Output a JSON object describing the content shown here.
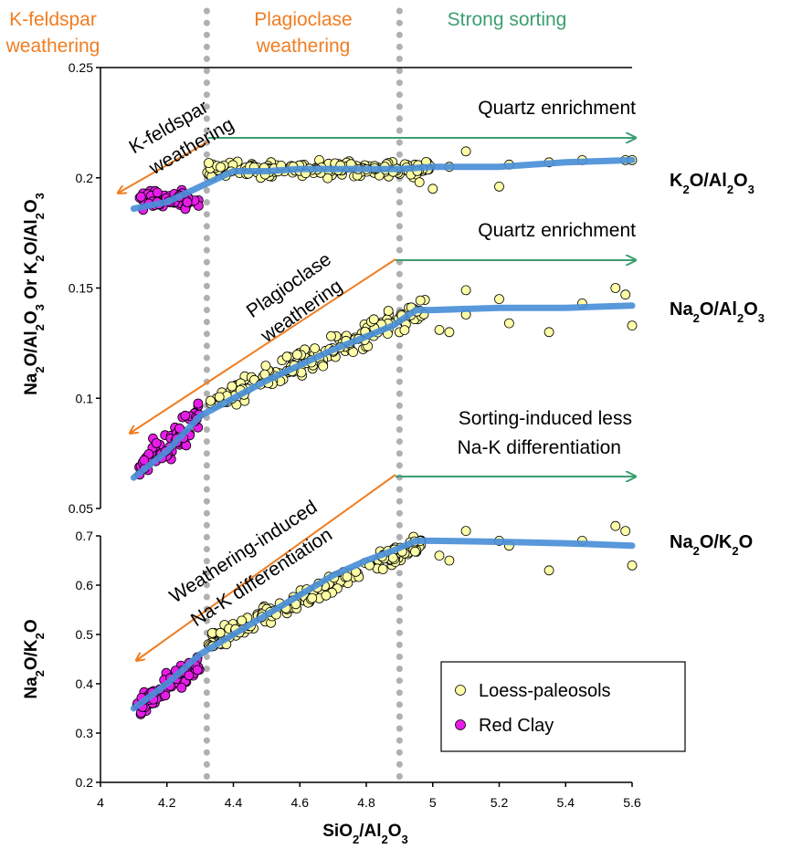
{
  "chart_data": {
    "type": "scatter",
    "x_axis": {
      "label_main": "SiO",
      "label_sub1": "2",
      "label_mid": "/Al",
      "label_sub2": "2",
      "label_end": "O",
      "label_sub3": "3",
      "range": [
        4,
        5.6
      ],
      "ticks": [
        "4",
        "4.2",
        "4.4",
        "4.6",
        "4.8",
        "5",
        "5.2",
        "5.4",
        "5.6"
      ]
    },
    "top_axis": {
      "label": "Na2O/Al2O3 Or K2O/Al2O3",
      "range": [
        0.05,
        0.25
      ],
      "ticks": [
        "0.05",
        "0.1",
        "0.15",
        "0.2",
        "0.25"
      ]
    },
    "bottom_axis": {
      "label": "Na2O/K2O",
      "range": [
        0.2,
        0.7
      ],
      "ticks": [
        "0.2",
        "0.3",
        "0.4",
        "0.5",
        "0.6",
        "0.7"
      ]
    },
    "phases": [
      {
        "label_line1": "K-feldspar",
        "label_line2": "weathering",
        "color": "#F07D21"
      },
      {
        "label_line1": "Plagioclase",
        "label_line2": "weathering",
        "color": "#F07D21"
      },
      {
        "label_line1": "Strong sorting",
        "label_line2": "",
        "color": "#3B9E70"
      }
    ],
    "phase_boundaries": [
      4.32,
      4.9
    ],
    "annotations": {
      "quartz1": "Quartz enrichment",
      "quartz2": "Quartz enrichment",
      "sorting_line1": "Sorting-induced less",
      "sorting_line2": "Na-K differentiation",
      "kfeld_line1": "K-feldspar",
      "kfeld_line2": "weathering",
      "plag_line1": "Plagioclase",
      "plag_line2": "weathering",
      "wind_line1": "Weathering-induced",
      "wind_line2": "Na-K differentiation"
    },
    "series_labels": {
      "k": {
        "a": "K",
        "b": "2",
        "c": "O/Al",
        "d": "2",
        "e": "O",
        "f": "3"
      },
      "na": {
        "a": "Na",
        "b": "2",
        "c": "O/Al",
        "d": "2",
        "e": "O",
        "f": "3"
      },
      "nak": {
        "a": "Na",
        "b": "2",
        "c": "O/K",
        "d": "2",
        "e": "O",
        "f": ""
      }
    },
    "legend": {
      "placement": "bottom-right",
      "items": [
        {
          "name": "Loess-paleosols",
          "color": "#FFFFA8"
        },
        {
          "name": "Red Clay",
          "color": "#E81CE8"
        }
      ]
    },
    "colors": {
      "trend": "#4A8FD8",
      "weathering_arrow": "#F07D21",
      "sorting_arrow": "#3B9E70",
      "boundary": "#B0B0B0"
    },
    "series": [
      {
        "name": "K2O/Al2O3",
        "trend": [
          [
            4.1,
            0.186
          ],
          [
            4.2,
            0.189
          ],
          [
            4.3,
            0.196
          ],
          [
            4.4,
            0.203
          ],
          [
            4.5,
            0.203
          ],
          [
            4.6,
            0.204
          ],
          [
            4.7,
            0.204
          ],
          [
            4.8,
            0.204
          ],
          [
            4.9,
            0.204
          ],
          [
            5.0,
            0.205
          ],
          [
            5.2,
            0.205
          ],
          [
            5.4,
            0.207
          ],
          [
            5.6,
            0.208
          ]
        ],
        "red_clay": {
          "x_range": [
            4.11,
            4.3
          ],
          "y_center": 0.19,
          "y_spread": 0.006,
          "count": 75
        },
        "loess": {
          "x_range": [
            4.32,
            5.0
          ],
          "y_center": 0.204,
          "y_spread": 0.005,
          "count": 190
        },
        "loess_extra": [
          [
            5.05,
            0.205
          ],
          [
            5.1,
            0.212
          ],
          [
            4.96,
            0.198
          ],
          [
            5.0,
            0.195
          ],
          [
            5.2,
            0.196
          ],
          [
            5.23,
            0.206
          ],
          [
            5.35,
            0.207
          ],
          [
            5.45,
            0.208
          ],
          [
            5.58,
            0.208
          ],
          [
            5.6,
            0.208
          ]
        ]
      },
      {
        "name": "Na2O/Al2O3",
        "trend": [
          [
            4.1,
            0.064
          ],
          [
            4.2,
            0.076
          ],
          [
            4.3,
            0.092
          ],
          [
            4.4,
            0.1
          ],
          [
            4.5,
            0.108
          ],
          [
            4.6,
            0.115
          ],
          [
            4.7,
            0.122
          ],
          [
            4.8,
            0.128
          ],
          [
            4.88,
            0.133
          ],
          [
            4.95,
            0.14
          ],
          [
            5.0,
            0.14
          ],
          [
            5.2,
            0.141
          ],
          [
            5.4,
            0.141
          ],
          [
            5.6,
            0.142
          ]
        ],
        "red_clay": {
          "x_range": [
            4.11,
            4.3
          ],
          "y_start": 0.068,
          "y_end": 0.092,
          "y_spread": 0.01,
          "count": 75
        },
        "loess": {
          "x_range": [
            4.32,
            4.98
          ],
          "y_start": 0.097,
          "y_end": 0.141,
          "y_spread": 0.008,
          "count": 190
        },
        "loess_extra": [
          [
            5.02,
            0.131
          ],
          [
            5.05,
            0.13
          ],
          [
            5.1,
            0.149
          ],
          [
            5.1,
            0.138
          ],
          [
            5.2,
            0.145
          ],
          [
            5.23,
            0.134
          ],
          [
            5.35,
            0.13
          ],
          [
            5.45,
            0.143
          ],
          [
            5.55,
            0.15
          ],
          [
            5.58,
            0.147
          ],
          [
            5.6,
            0.133
          ]
        ]
      },
      {
        "name": "Na2O/K2O",
        "trend": [
          [
            4.1,
            0.35
          ],
          [
            4.2,
            0.4
          ],
          [
            4.3,
            0.46
          ],
          [
            4.4,
            0.5
          ],
          [
            4.5,
            0.54
          ],
          [
            4.6,
            0.58
          ],
          [
            4.7,
            0.62
          ],
          [
            4.8,
            0.65
          ],
          [
            4.88,
            0.67
          ],
          [
            4.95,
            0.69
          ],
          [
            5.0,
            0.69
          ],
          [
            5.2,
            0.688
          ],
          [
            5.4,
            0.685
          ],
          [
            5.6,
            0.68
          ]
        ],
        "red_clay": {
          "x_range": [
            4.11,
            4.3
          ],
          "y_start": 0.35,
          "y_end": 0.44,
          "y_spread": 0.035,
          "count": 75
        },
        "loess": {
          "x_range": [
            4.32,
            4.98
          ],
          "y_start": 0.48,
          "y_end": 0.69,
          "y_spread": 0.03,
          "count": 190
        },
        "loess_extra": [
          [
            5.02,
            0.66
          ],
          [
            5.05,
            0.65
          ],
          [
            5.1,
            0.71
          ],
          [
            5.2,
            0.69
          ],
          [
            5.23,
            0.68
          ],
          [
            5.35,
            0.63
          ],
          [
            5.45,
            0.69
          ],
          [
            5.55,
            0.72
          ],
          [
            5.58,
            0.71
          ],
          [
            5.6,
            0.64
          ]
        ]
      }
    ]
  }
}
